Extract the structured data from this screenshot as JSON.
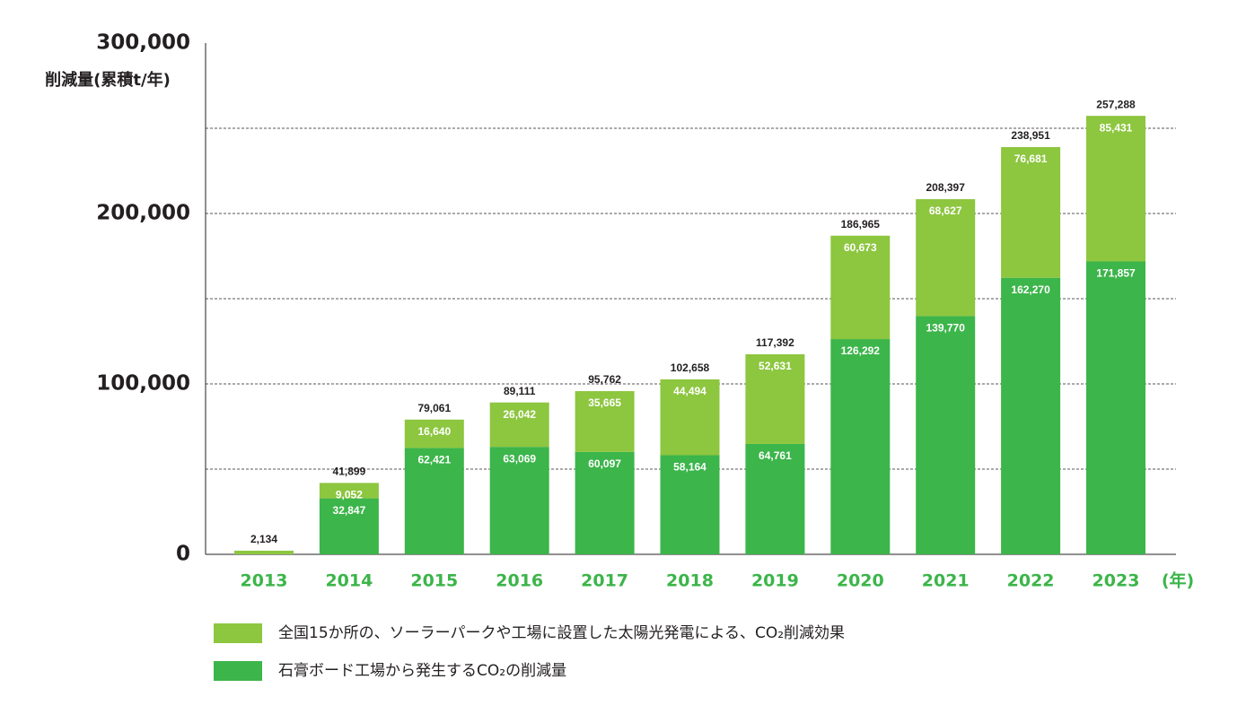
{
  "chart_data": {
    "type": "stacked-bar",
    "y_label": "削減量(累積t/年)",
    "x_unit": "(年)",
    "categories": [
      "2013",
      "2014",
      "2015",
      "2016",
      "2017",
      "2018",
      "2019",
      "2020",
      "2021",
      "2022",
      "2023"
    ],
    "series": [
      {
        "name": "石膏ボード工場から発生するCO₂の削減量",
        "color": "#3cb54a",
        "values": [
          null,
          32847,
          62421,
          63069,
          60097,
          58164,
          64761,
          126292,
          139770,
          162270,
          171857
        ],
        "value_labels": [
          null,
          "32,847",
          "62,421",
          "63,069",
          "60,097",
          "58,164",
          "64,761",
          "126,292",
          "139,770",
          "162,270",
          "171,857"
        ]
      },
      {
        "name": "全国15か所の、ソーラーパークや工場に設置した太陽光発電による、CO₂削減効果",
        "color": "#8dc63f",
        "values": [
          2134,
          9052,
          16640,
          26042,
          35665,
          44494,
          52631,
          60673,
          68627,
          76681,
          85431
        ],
        "value_labels": [
          null,
          "9,052",
          "16,640",
          "26,042",
          "35,665",
          "44,494",
          "52,631",
          "60,673",
          "68,627",
          "76,681",
          "85,431"
        ]
      }
    ],
    "totals": [
      2134,
      41899,
      79061,
      89111,
      95762,
      102658,
      117392,
      186965,
      208397,
      238951,
      257288
    ],
    "total_labels": [
      "2,134",
      "41,899",
      "79,061",
      "89,111",
      "95,762",
      "102,658",
      "117,392",
      "186,965",
      "208,397",
      "238,951",
      "257,288"
    ],
    "ylim": [
      0,
      300000
    ],
    "yticks": [
      0,
      {
        "value": 100000,
        "label": "100,000"
      },
      {
        "value": 200000,
        "label": "200,000"
      },
      {
        "value": 300000,
        "label": "300,000"
      }
    ],
    "minor_yticks": [
      50000,
      150000,
      250000
    ],
    "grid": true
  }
}
